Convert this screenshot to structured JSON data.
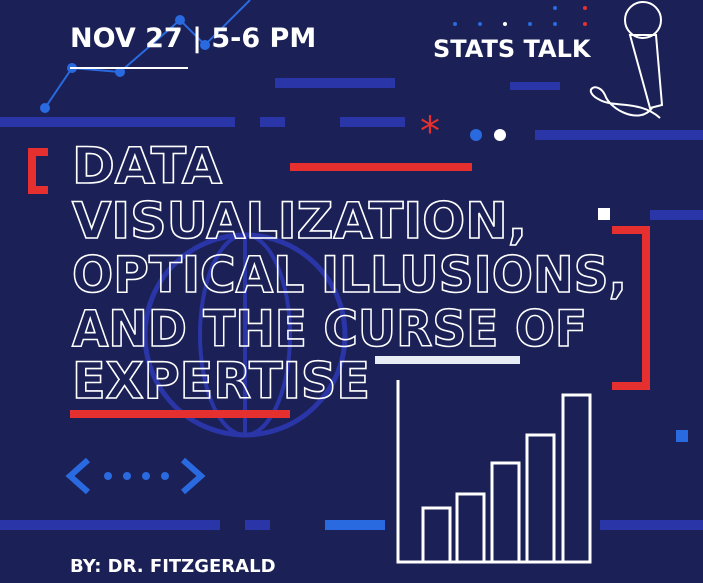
{
  "header": {
    "date": "NOV 27 | 5-6 PM",
    "series": "STATS TALK"
  },
  "title": {
    "lines": [
      "DATA",
      "VISUALIZATION,",
      "OPTICAL ILLUSIONS,",
      "AND THE CURSE OF",
      "EXPERTISE"
    ]
  },
  "footer": {
    "speaker": "BY: DR. FITZGERALD"
  }
}
